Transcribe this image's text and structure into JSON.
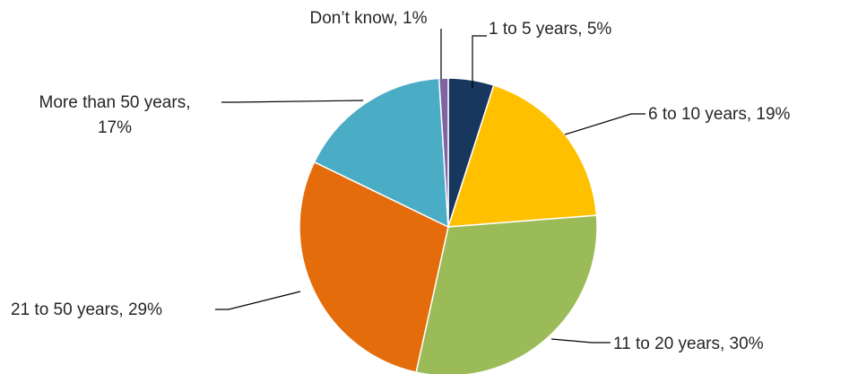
{
  "chart_data": {
    "type": "pie",
    "title": "",
    "start_angle_deg": 0,
    "direction": "clockwise",
    "legend": "none",
    "slices": [
      {
        "label": "1 to 5 years",
        "value": 5,
        "value_label": "5%",
        "color": "#17375e"
      },
      {
        "label": "6 to 10 years",
        "value": 19,
        "value_label": "19%",
        "color": "#ffc000"
      },
      {
        "label": "11 to 20 years",
        "value": 30,
        "value_label": "30%",
        "color": "#9bbb59"
      },
      {
        "label": "21 to 50 years",
        "value": 29,
        "value_label": "29%",
        "color": "#e46c0a"
      },
      {
        "label": "More than 50 years",
        "value": 17,
        "value_label": "17%",
        "color": "#4bacc6"
      },
      {
        "label": "Don’t know",
        "value": 1,
        "value_label": "1%",
        "color": "#8064a2"
      }
    ]
  }
}
